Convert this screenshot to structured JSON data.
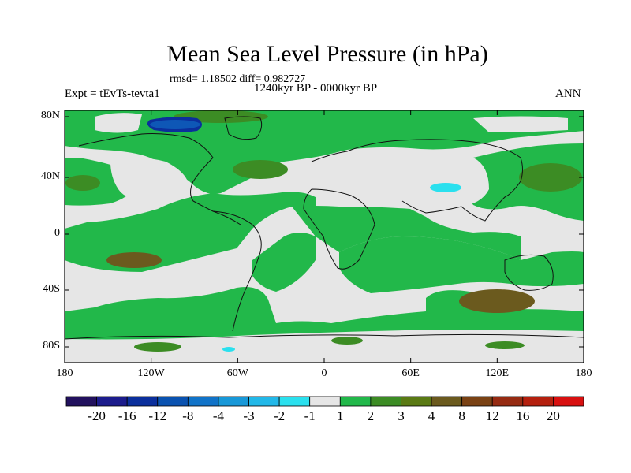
{
  "title": "Mean Sea Level Pressure (in hPa)",
  "stats_label": "rmsd= 1.18502 diff= 0.982727",
  "period_label": "1240kyr BP - 0000kyr BP",
  "expt_label": "Expt = tEvTs-tevta1",
  "season_label": "ANN",
  "lat_ticks": [
    "80N",
    "40N",
    "0",
    "40S",
    "80S"
  ],
  "lon_ticks": [
    "180",
    "120W",
    "60W",
    "0",
    "60E",
    "120E",
    "180"
  ],
  "colorbar": {
    "colors": [
      "#22115e",
      "#1c1c8c",
      "#0b2f9c",
      "#0a52b0",
      "#1173c8",
      "#1898d8",
      "#22b8e8",
      "#2ae0ee",
      "#e6e6e6",
      "#22b84a",
      "#3c8c24",
      "#5a7a14",
      "#6b5a1e",
      "#7a4214",
      "#962b12",
      "#b4200e",
      "#d81010"
    ],
    "labels": [
      "-20",
      "-16",
      "-12",
      "-8",
      "-4",
      "-3",
      "-2",
      "-1",
      "1",
      "2",
      "3",
      "4",
      "8",
      "12",
      "16",
      "20"
    ]
  },
  "colors": {
    "neutral": "#e6e6e6",
    "green": "#22b84a",
    "dark_green": "#3c8c24",
    "olive": "#6b5a1e",
    "cyan": "#2ae0ee",
    "blue": "#1173c8",
    "dark_blue": "#0b2f9c"
  }
}
